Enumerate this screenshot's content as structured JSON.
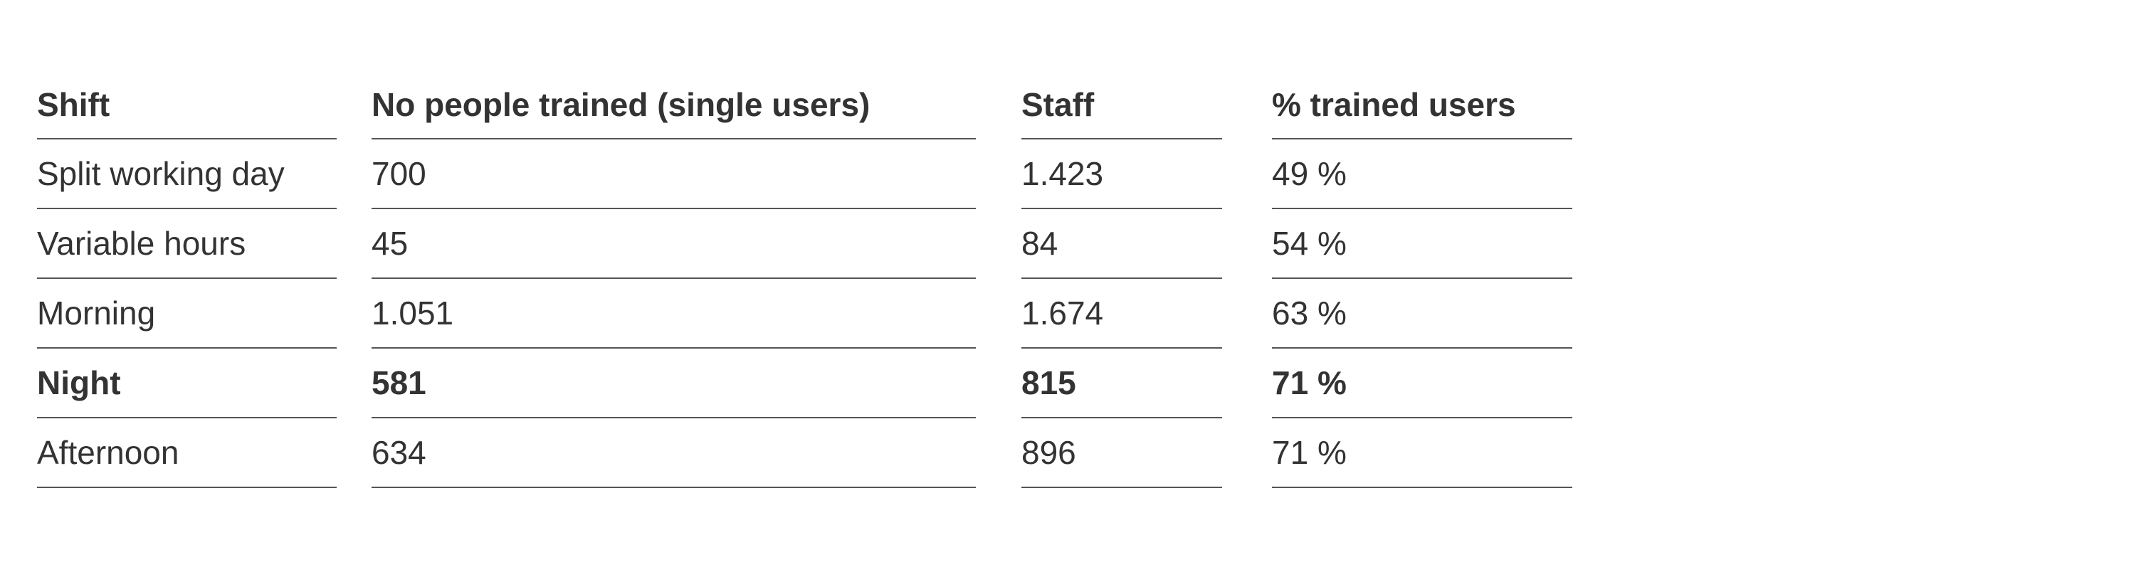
{
  "table": {
    "headers": [
      "Shift",
      "No people trained (single users)",
      "Staff",
      "% trained users"
    ],
    "rows": [
      {
        "shift": "Split working day",
        "trained": "700",
        "staff": "1.423",
        "pct": "49 %"
      },
      {
        "shift": "Variable hours",
        "trained": "45",
        "staff": "84",
        "pct": "54 %"
      },
      {
        "shift": "Morning",
        "trained": "1.051",
        "staff": "1.674",
        "pct": "63 %"
      },
      {
        "shift": "Night",
        "trained": "581",
        "staff": "815",
        "pct": "71 %"
      },
      {
        "shift": "Afternoon",
        "trained": "634",
        "staff": "896",
        "pct": "71 %"
      }
    ],
    "highlighted_row": "Night"
  }
}
